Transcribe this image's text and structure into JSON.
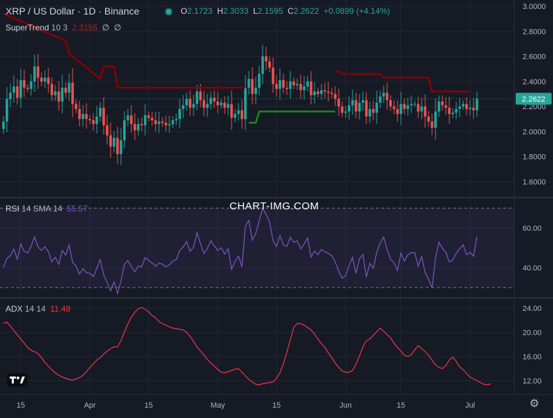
{
  "header": {
    "symbol": "XRP / US Dollar · 1D · Binance",
    "open_label": "O",
    "open": "2.1723",
    "high_label": "H",
    "high": "2.3033",
    "low_label": "L",
    "low": "2.1595",
    "close_label": "C",
    "close": "2.2622",
    "change": "+0.0899 (+4.14%)"
  },
  "supertrend": {
    "name": "SuperTrend",
    "params": "10 3",
    "value": "2.3155",
    "extra1": "∅",
    "extra2": "∅"
  },
  "rsi_header": {
    "name": "RSI",
    "params": "14 SMA 14",
    "value": "55.57"
  },
  "adx_header": {
    "name": "ADX",
    "params": "14 14",
    "value": "11.48"
  },
  "watermark": "CHART-IMG.COM",
  "icons": {
    "logo": "tradingview-logo-icon",
    "settings": "gear-icon"
  },
  "colors": {
    "up": "#26a69a",
    "down": "#ef5350",
    "supertrend_down": "#8b0000",
    "supertrend_up": "#1b8a1b",
    "rsi": "#7e57c2",
    "adx": "#f23645",
    "last_price_tag": "#26a69a"
  },
  "chart_data": [
    {
      "type": "candlestick",
      "series": [
        {
          "name": "XRP / US Dollar"
        },
        {
          "name": "SuperTrend"
        }
      ],
      "x_ticks": [
        "15",
        "Apr",
        "15",
        "May",
        "15",
        "Jun",
        "15",
        "Jul"
      ],
      "y_ticks": [
        "3.0000",
        "2.8000",
        "2.6000",
        "2.4000",
        "2.2000",
        "2.0000",
        "1.8000",
        "1.6000"
      ],
      "ylim": [
        1.55,
        3.0
      ],
      "last_price": "2.2622",
      "closes": [
        2.08,
        2.26,
        2.31,
        2.36,
        2.27,
        2.41,
        2.35,
        2.34,
        2.4,
        2.52,
        2.43,
        2.4,
        2.43,
        2.38,
        2.29,
        2.32,
        2.24,
        2.35,
        2.31,
        2.39,
        2.22,
        2.18,
        2.1,
        2.14,
        2.1,
        2.09,
        2.06,
        2.12,
        2.19,
        2.05,
        1.97,
        1.88,
        1.95,
        1.82,
        1.93,
        2.09,
        2.13,
        2.06,
        2.01,
        2.06,
        2.05,
        2.13,
        2.11,
        2.09,
        2.06,
        2.08,
        2.07,
        2.05,
        2.06,
        2.09,
        2.1,
        2.18,
        2.21,
        2.26,
        2.19,
        2.22,
        2.32,
        2.25,
        2.19,
        2.22,
        2.27,
        2.24,
        2.21,
        2.23,
        2.19,
        2.22,
        2.11,
        2.14,
        2.17,
        2.1,
        2.35,
        2.42,
        2.3,
        2.35,
        2.46,
        2.6,
        2.56,
        2.51,
        2.38,
        2.34,
        2.41,
        2.35,
        2.34,
        2.4,
        2.37,
        2.38,
        2.33,
        2.36,
        2.4,
        2.29,
        2.32,
        2.3,
        2.33,
        2.32,
        2.31,
        2.3,
        2.26,
        2.2,
        2.15,
        2.16,
        2.21,
        2.25,
        2.16,
        2.23,
        2.25,
        2.12,
        2.18,
        2.15,
        2.23,
        2.28,
        2.31,
        2.25,
        2.2,
        2.18,
        2.14,
        2.22,
        2.18,
        2.21,
        2.22,
        2.22,
        2.16,
        2.2,
        2.12,
        2.08,
        2.03,
        2.16,
        2.24,
        2.21,
        2.19,
        2.14,
        2.15,
        2.18,
        2.2,
        2.22,
        2.18,
        2.19,
        2.17,
        2.26
      ]
    },
    {
      "type": "line",
      "series": [
        {
          "name": "RSI",
          "values": [
            40.1,
            44.7,
            46.0,
            49.4,
            44.3,
            51.9,
            48.3,
            47.4,
            50.8,
            55.5,
            50.5,
            48.7,
            50.6,
            48.0,
            43.0,
            45.3,
            41.7,
            48.7,
            46.4,
            51.4,
            42.7,
            40.8,
            36.8,
            39.5,
            37.6,
            37.2,
            35.5,
            39.7,
            44.1,
            36.5,
            32.5,
            28.4,
            32.9,
            27.1,
            33.3,
            41.6,
            43.6,
            40.6,
            37.9,
            40.9,
            40.4,
            45.1,
            43.7,
            42.4,
            40.8,
            42.3,
            41.8,
            40.5,
            41.4,
            43.3,
            44.1,
            48.7,
            50.4,
            53.2,
            48.3,
            50.4,
            57.7,
            52.1,
            47.2,
            49.7,
            53.6,
            51.0,
            48.6,
            50.1,
            46.8,
            49.6,
            39.2,
            43.1,
            45.9,
            40.5,
            60.9,
            63.8,
            53.9,
            57.3,
            63.6,
            69.9,
            66.8,
            63.2,
            53.6,
            50.7,
            56.2,
            51.5,
            50.7,
            55.3,
            52.8,
            53.6,
            49.5,
            51.9,
            55.0,
            45.4,
            48.4,
            46.5,
            49.2,
            48.0,
            47.2,
            46.1,
            42.9,
            38.3,
            34.8,
            35.9,
            41.2,
            45.3,
            37.2,
            44.5,
            46.6,
            35.3,
            42.2,
            39.7,
            47.8,
            52.6,
            55.4,
            49.3,
            44.3,
            42.5,
            38.7,
            47.3,
            43.4,
            46.5,
            47.6,
            47.6,
            40.8,
            45.7,
            37.6,
            34.2,
            29.8,
            44.8,
            52.8,
            49.8,
            47.8,
            42.9,
            43.9,
            47.3,
            49.5,
            51.6,
            46.5,
            47.8,
            45.8,
            55.6
          ]
        }
      ],
      "y_ticks": [
        "60.00",
        "40.00"
      ],
      "bands": [
        70,
        30
      ]
    },
    {
      "type": "line",
      "series": [
        {
          "name": "ADX",
          "values": [
            21.5,
            21.7,
            21.0,
            20.3,
            19.6,
            18.9,
            18.2,
            17.5,
            17.0,
            16.8,
            16.5,
            15.8,
            15.0,
            14.4,
            13.8,
            13.3,
            12.9,
            12.6,
            12.4,
            12.2,
            12.1,
            12.3,
            12.5,
            12.9,
            13.5,
            14.2,
            14.8,
            15.4,
            15.8,
            16.4,
            16.9,
            17.3,
            17.6,
            17.6,
            18.6,
            20.1,
            21.4,
            22.5,
            23.3,
            23.9,
            24.1,
            23.8,
            23.4,
            22.8,
            22.4,
            21.8,
            21.4,
            21.2,
            20.9,
            20.7,
            20.6,
            20.5,
            20.4,
            20.0,
            19.3,
            18.5,
            17.6,
            16.9,
            16.3,
            15.5,
            14.9,
            14.4,
            13.9,
            13.4,
            13.3,
            13.5,
            13.7,
            13.9,
            14.0,
            13.4,
            12.8,
            12.2,
            11.8,
            11.4,
            11.3,
            11.5,
            11.6,
            11.7,
            11.8,
            12.4,
            13.3,
            14.8,
            16.7,
            18.8,
            20.8,
            21.5,
            21.4,
            21.2,
            20.8,
            20.4,
            19.7,
            18.9,
            18.1,
            17.5,
            16.6,
            15.8,
            14.9,
            14.2,
            13.6,
            13.4,
            13.4,
            13.7,
            14.7,
            16.1,
            17.6,
            18.6,
            18.9,
            19.5,
            20.1,
            20.7,
            20.2,
            19.6,
            19.1,
            18.2,
            17.5,
            16.9,
            16.2,
            16.0,
            16.3,
            17.1,
            17.8,
            17.3,
            16.8,
            16.2,
            15.4,
            14.6,
            14.2,
            14.0,
            14.5,
            15.4,
            15.9,
            15.2,
            14.3,
            13.8,
            13.2,
            12.6,
            12.3,
            12.0,
            11.7,
            11.4,
            11.3,
            11.5
          ]
        }
      ],
      "y_ticks": [
        "24.00",
        "20.00",
        "16.00",
        "12.00"
      ]
    }
  ]
}
